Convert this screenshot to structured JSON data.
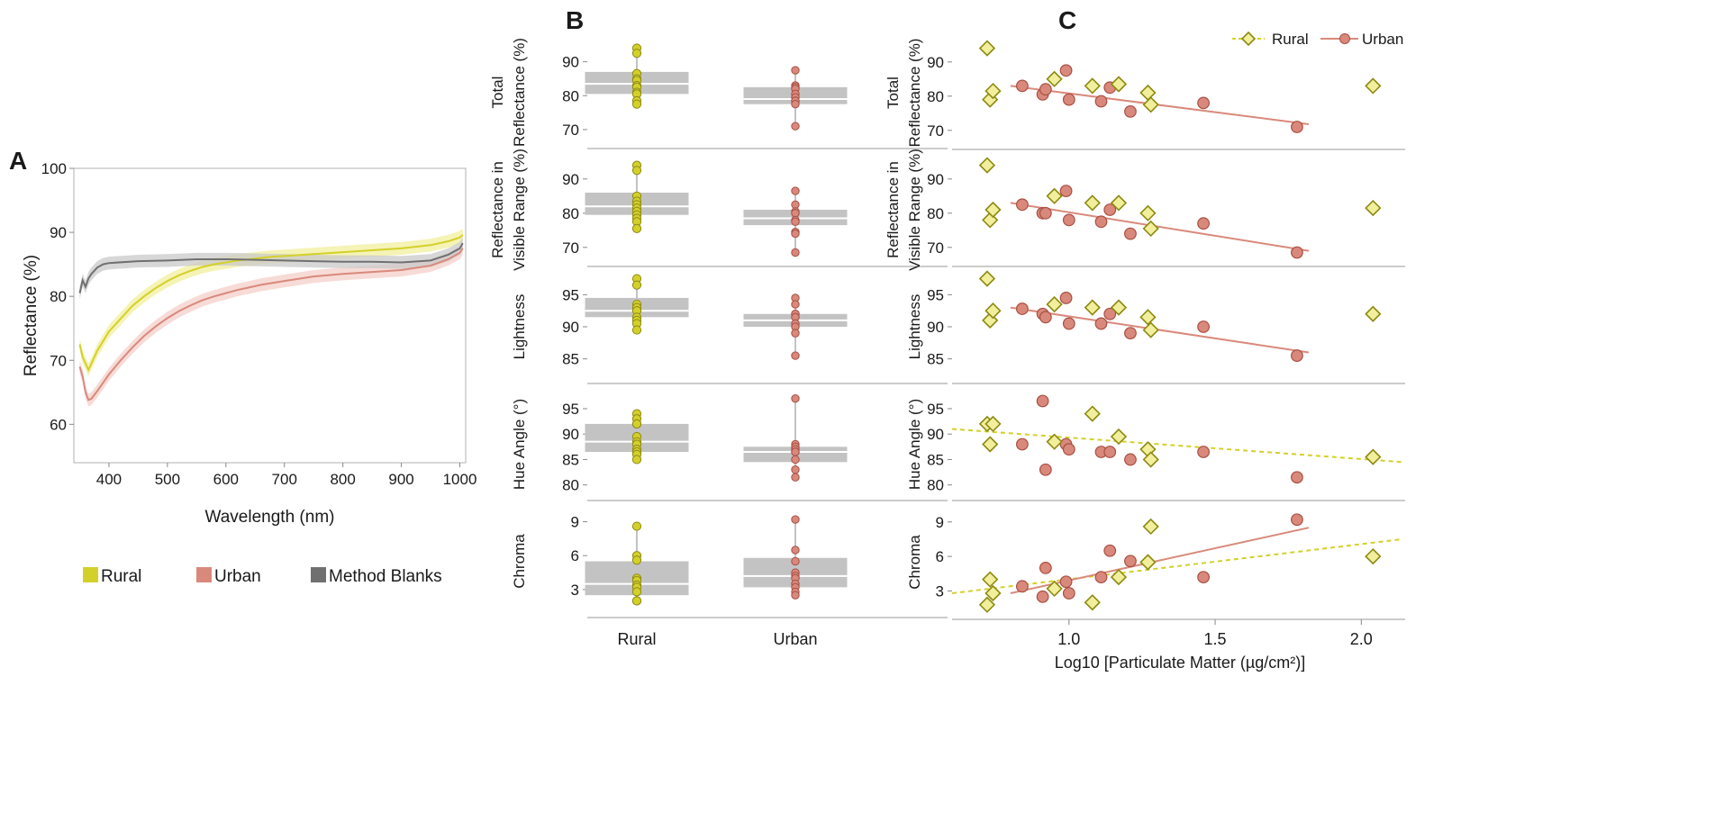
{
  "colors": {
    "rural": "#d4d02a",
    "rural_fill": "#f1ef9c",
    "rural_stroke": "#8c8a12",
    "urban": "#d9897b",
    "urban_fill": "#f4cfc9",
    "urban_stroke": "#a84f44",
    "blank": "#707070",
    "blank_fill": "#c9c9c9",
    "box": "#c3c3c3"
  },
  "chart_data": [
    {
      "panel": "A",
      "type": "line",
      "xlabel": "Wavelength (nm)",
      "ylabel": "Reflectance (%)",
      "xlim": [
        340,
        1010
      ],
      "ylim": [
        54,
        100
      ],
      "xticks": [
        "400",
        "500",
        "600",
        "700",
        "800",
        "900",
        "1000"
      ],
      "yticks": [
        "60",
        "70",
        "80",
        "90",
        "100"
      ],
      "band_width": 1.0,
      "series": [
        {
          "name": "Rural",
          "key": "rural",
          "x": [
            350,
            355,
            360,
            365,
            370,
            380,
            390,
            400,
            420,
            440,
            460,
            480,
            500,
            520,
            540,
            560,
            580,
            600,
            620,
            640,
            660,
            680,
            700,
            750,
            800,
            850,
            900,
            950,
            980,
            1000,
            1005
          ],
          "y": [
            72.5,
            70.5,
            69.5,
            68.5,
            69.5,
            71.5,
            73.0,
            74.5,
            76.5,
            78.5,
            80.0,
            81.3,
            82.4,
            83.3,
            84.0,
            84.6,
            85.0,
            85.3,
            85.6,
            85.8,
            86.0,
            86.2,
            86.3,
            86.6,
            86.9,
            87.2,
            87.5,
            88.0,
            88.6,
            89.2,
            89.6
          ]
        },
        {
          "name": "Urban",
          "key": "urban",
          "x": [
            350,
            355,
            360,
            365,
            370,
            380,
            390,
            400,
            420,
            440,
            460,
            480,
            500,
            520,
            540,
            560,
            580,
            600,
            620,
            640,
            660,
            680,
            700,
            750,
            800,
            850,
            900,
            950,
            980,
            1000,
            1005
          ],
          "y": [
            69.0,
            67.5,
            65.0,
            63.8,
            64.0,
            65.2,
            66.5,
            67.8,
            70.0,
            72.0,
            73.8,
            75.3,
            76.6,
            77.7,
            78.6,
            79.4,
            80.0,
            80.5,
            81.0,
            81.4,
            81.8,
            82.1,
            82.4,
            83.1,
            83.5,
            83.8,
            84.1,
            84.8,
            85.8,
            86.8,
            87.5
          ]
        },
        {
          "name": "Method Blanks",
          "key": "blank",
          "x": [
            350,
            355,
            360,
            365,
            370,
            380,
            390,
            400,
            450,
            500,
            550,
            600,
            650,
            700,
            750,
            800,
            850,
            900,
            950,
            980,
            1000,
            1005
          ],
          "y": [
            80.5,
            82.5,
            81.5,
            82.8,
            83.5,
            84.5,
            85.0,
            85.2,
            85.5,
            85.6,
            85.8,
            85.8,
            85.7,
            85.6,
            85.5,
            85.4,
            85.4,
            85.3,
            85.6,
            86.5,
            87.5,
            88.3
          ]
        }
      ],
      "legend": [
        {
          "label": "Rural",
          "key": "rural"
        },
        {
          "label": "Urban",
          "key": "urban"
        },
        {
          "label": "Method Blanks",
          "key": "blank"
        }
      ]
    },
    {
      "panel": "B",
      "type": "box",
      "categories": [
        "Rural",
        "Urban"
      ],
      "rows": [
        {
          "label": [
            "Total",
            "Reflectance (%)"
          ],
          "ylim": [
            66,
            96
          ],
          "yticks": [
            70,
            80,
            90
          ],
          "rural": {
            "q1": 80.5,
            "median": 83.5,
            "q3": 87.0,
            "min": 77.5,
            "max": 94.0,
            "points": [
              94,
              92.5,
              86.5,
              85,
              84.5,
              83,
              82.5,
              81,
              80.5,
              78.5,
              77.5
            ]
          },
          "urban": {
            "q1": 77.5,
            "median": 79.0,
            "q3": 82.5,
            "min": 71.0,
            "max": 87.5,
            "points": [
              87.5,
              83,
              82.5,
              82,
              80.5,
              79.5,
              78.5,
              78.5,
              77.5,
              71
            ]
          }
        },
        {
          "label": [
            "Reflectance in",
            "Visible Range (%)"
          ],
          "ylim": [
            66,
            96
          ],
          "yticks": [
            70,
            80,
            90
          ],
          "rural": {
            "q1": 79.5,
            "median": 82.0,
            "q3": 86.0,
            "min": 75.5,
            "max": 94.0,
            "points": [
              94,
              92.5,
              85,
              83.5,
              82.5,
              81.5,
              80.5,
              79.5,
              78.5,
              77.5,
              75.5
            ]
          },
          "urban": {
            "q1": 76.5,
            "median": 78.5,
            "q3": 81.0,
            "min": 68.5,
            "max": 86.5,
            "points": [
              86.5,
              82.5,
              80.5,
              80,
              80,
              78,
              77.5,
              74.5,
              74,
              68.5
            ]
          }
        },
        {
          "label": [
            "Lightness"
          ],
          "ylim": [
            82,
            98
          ],
          "yticks": [
            85,
            90,
            95
          ],
          "rural": {
            "q1": 91.5,
            "median": 92.5,
            "q3": 94.5,
            "min": 89.5,
            "max": 97.5,
            "points": [
              97.5,
              96.5,
              93.5,
              93,
              92.5,
              92.5,
              91.5,
              91,
              90.5,
              89.5
            ]
          },
          "urban": {
            "q1": 90.0,
            "median": 91.0,
            "q3": 92.0,
            "min": 85.5,
            "max": 94.5,
            "points": [
              94.5,
              93.5,
              92,
              92,
              91.5,
              91.5,
              90.5,
              90,
              89,
              85.5
            ]
          }
        },
        {
          "label": [
            "Hue Angle (°)"
          ],
          "ylim": [
            78,
            98
          ],
          "yticks": [
            80,
            85,
            90,
            95
          ],
          "rural": {
            "q1": 86.5,
            "median": 88.5,
            "q3": 92.0,
            "min": 85.0,
            "max": 94.0,
            "points": [
              94,
              93,
              92,
              92,
              89.5,
              88.5,
              88,
              87,
              86.5,
              86,
              85
            ]
          },
          "urban": {
            "q1": 84.5,
            "median": 86.5,
            "q3": 87.5,
            "min": 81.5,
            "max": 97.0,
            "points": [
              97,
              88,
              87.5,
              87,
              86.5,
              86.5,
              86.5,
              85,
              83,
              81.5
            ]
          }
        },
        {
          "label": [
            "Chroma"
          ],
          "ylim": [
            1,
            10
          ],
          "yticks": [
            3,
            6,
            9
          ],
          "rural": {
            "q1": 2.5,
            "median": 3.5,
            "q3": 5.5,
            "min": 2.0,
            "max": 8.6,
            "points": [
              8.6,
              6,
              5.6,
              4,
              3.8,
              3.4,
              3.2,
              2.8,
              2,
              2
            ]
          },
          "urban": {
            "q1": 3.2,
            "median": 4.2,
            "q3": 5.8,
            "min": 2.4,
            "max": 9.2,
            "points": [
              9.2,
              6.5,
              5.5,
              4.5,
              4.2,
              4,
              3.5,
              3.2,
              2.8,
              2.5
            ]
          }
        }
      ]
    },
    {
      "panel": "C",
      "type": "scatter",
      "xlabel": "Log10 [Particulate Matter (µg/cm²)]",
      "xlim": [
        0.6,
        2.15
      ],
      "xticks": [
        "1.0",
        "1.5",
        "2.0"
      ],
      "xtick_values": [
        1.0,
        1.5,
        2.0
      ],
      "legend": [
        {
          "label": "Rural",
          "key": "rural"
        },
        {
          "label": "Urban",
          "key": "urban"
        }
      ],
      "rows": [
        {
          "label": [
            "Total",
            "Reflectance (%)"
          ],
          "ylim": [
            66,
            96
          ],
          "yticks": [
            70,
            80,
            90
          ],
          "rural": [
            [
              0.72,
              94.0
            ],
            [
              0.73,
              79.0
            ],
            [
              0.74,
              81.5
            ],
            [
              0.95,
              85.0
            ],
            [
              1.08,
              83.0
            ],
            [
              1.17,
              83.5
            ],
            [
              1.27,
              81.0
            ],
            [
              1.28,
              77.5
            ],
            [
              2.04,
              83.0
            ]
          ],
          "urban": [
            [
              0.84,
              83.0
            ],
            [
              0.91,
              80.5
            ],
            [
              0.92,
              82.0
            ],
            [
              0.99,
              87.5
            ],
            [
              1.0,
              79.0
            ],
            [
              1.11,
              78.5
            ],
            [
              1.14,
              82.5
            ],
            [
              1.21,
              75.5
            ],
            [
              1.46,
              78.0
            ],
            [
              1.78,
              71.0
            ]
          ],
          "urban_fit": [
            [
              0.8,
              83.0
            ],
            [
              1.82,
              71.8
            ]
          ],
          "rural_fit": null
        },
        {
          "label": [
            "Reflectance in",
            "Visible Range (%)"
          ],
          "ylim": [
            66,
            96
          ],
          "yticks": [
            70,
            80,
            90
          ],
          "rural": [
            [
              0.72,
              94.0
            ],
            [
              0.73,
              78.0
            ],
            [
              0.74,
              81.0
            ],
            [
              0.95,
              85.0
            ],
            [
              1.08,
              83.0
            ],
            [
              1.17,
              83.0
            ],
            [
              1.27,
              80.0
            ],
            [
              1.28,
              75.5
            ],
            [
              2.04,
              81.5
            ]
          ],
          "urban": [
            [
              0.84,
              82.5
            ],
            [
              0.91,
              80.0
            ],
            [
              0.92,
              80.0
            ],
            [
              0.99,
              86.5
            ],
            [
              1.0,
              78.0
            ],
            [
              1.11,
              77.5
            ],
            [
              1.14,
              81.0
            ],
            [
              1.21,
              74.0
            ],
            [
              1.46,
              77.0
            ],
            [
              1.78,
              68.5
            ]
          ],
          "urban_fit": [
            [
              0.8,
              83.0
            ],
            [
              1.82,
              69.0
            ]
          ],
          "rural_fit": null
        },
        {
          "label": [
            "Lightness"
          ],
          "ylim": [
            82,
            98
          ],
          "yticks": [
            85,
            90,
            95
          ],
          "rural": [
            [
              0.72,
              97.5
            ],
            [
              0.73,
              91.0
            ],
            [
              0.74,
              92.5
            ],
            [
              0.95,
              93.5
            ],
            [
              1.08,
              93.0
            ],
            [
              1.17,
              93.0
            ],
            [
              1.27,
              91.5
            ],
            [
              1.28,
              89.5
            ],
            [
              2.04,
              92.0
            ]
          ],
          "urban": [
            [
              0.84,
              92.8
            ],
            [
              0.91,
              92.0
            ],
            [
              0.92,
              91.5
            ],
            [
              0.99,
              94.5
            ],
            [
              1.0,
              90.5
            ],
            [
              1.11,
              90.5
            ],
            [
              1.14,
              92.0
            ],
            [
              1.21,
              89.0
            ],
            [
              1.46,
              90.0
            ],
            [
              1.78,
              85.5
            ]
          ],
          "urban_fit": [
            [
              0.8,
              93.0
            ],
            [
              1.82,
              86.0
            ]
          ],
          "rural_fit": null
        },
        {
          "label": [
            "Hue Angle (°)"
          ],
          "ylim": [
            78,
            98
          ],
          "yticks": [
            80,
            85,
            90,
            95
          ],
          "rural": [
            [
              0.72,
              92.0
            ],
            [
              0.74,
              92.0
            ],
            [
              0.73,
              88.0
            ],
            [
              0.95,
              88.5
            ],
            [
              1.08,
              94.0
            ],
            [
              1.17,
              89.5
            ],
            [
              1.27,
              87.0
            ],
            [
              1.28,
              85.0
            ],
            [
              2.04,
              85.5
            ]
          ],
          "urban": [
            [
              0.84,
              88.0
            ],
            [
              0.91,
              96.5
            ],
            [
              0.92,
              83.0
            ],
            [
              0.99,
              88.0
            ],
            [
              1.0,
              87.0
            ],
            [
              1.11,
              86.5
            ],
            [
              1.14,
              86.5
            ],
            [
              1.21,
              85.0
            ],
            [
              1.46,
              86.5
            ],
            [
              1.78,
              81.5
            ]
          ],
          "urban_fit": null,
          "rural_fit": [
            [
              0.6,
              91.0
            ],
            [
              2.14,
              84.5
            ]
          ]
        },
        {
          "label": [
            "Chroma"
          ],
          "ylim": [
            1,
            10
          ],
          "yticks": [
            3,
            6,
            9
          ],
          "rural": [
            [
              0.72,
              1.8
            ],
            [
              0.73,
              4.0
            ],
            [
              0.74,
              2.8
            ],
            [
              0.95,
              3.2
            ],
            [
              1.08,
              2.0
            ],
            [
              1.17,
              4.2
            ],
            [
              1.27,
              5.5
            ],
            [
              1.28,
              8.6
            ],
            [
              2.04,
              6.0
            ]
          ],
          "urban": [
            [
              0.84,
              3.4
            ],
            [
              0.91,
              2.5
            ],
            [
              0.92,
              5.0
            ],
            [
              0.99,
              3.8
            ],
            [
              1.0,
              2.8
            ],
            [
              1.11,
              4.2
            ],
            [
              1.14,
              6.5
            ],
            [
              1.21,
              5.6
            ],
            [
              1.46,
              4.2
            ],
            [
              1.78,
              9.2
            ]
          ],
          "urban_fit": [
            [
              0.8,
              2.8
            ],
            [
              1.82,
              8.5
            ]
          ],
          "rural_fit": [
            [
              0.6,
              2.8
            ],
            [
              2.14,
              7.5
            ]
          ]
        }
      ]
    }
  ],
  "labels": {
    "panel_a": "A",
    "panel_b": "B",
    "panel_c": "C"
  }
}
